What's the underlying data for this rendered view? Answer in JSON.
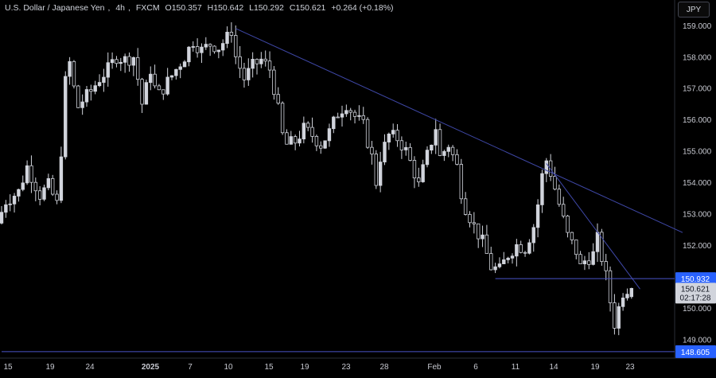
{
  "header": {
    "symbol": "U.S. Dollar / Japanese Yen",
    "interval": "4h",
    "source": "FXCM",
    "open_label": "O",
    "open": "150.357",
    "high_label": "H",
    "high": "150.642",
    "low_label": "L",
    "low": "150.292",
    "close_label": "C",
    "close": "150.621",
    "change": "+0.264 (+0.18%)"
  },
  "currency_button": "JPY",
  "colors": {
    "background": "#000000",
    "candle": "#d1d4dc",
    "trendline": "#3f48a8",
    "level_line": "#4a54c8",
    "level_badge": "#2962ff",
    "last_price_badge": "#d1d4dc",
    "axis_text": "#c7c9d1"
  },
  "chart_data": {
    "type": "candlestick",
    "yrange": [
      148.4,
      159.3
    ],
    "x_tick_labels": [
      "15",
      "19",
      "24",
      "2025",
      "7",
      "10",
      "15",
      "19",
      "23",
      "28",
      "Feb",
      "6",
      "11",
      "14",
      "19",
      "23"
    ],
    "y_tick_labels": [
      "159.000",
      "158.000",
      "157.000",
      "156.000",
      "155.000",
      "154.000",
      "153.000",
      "152.000",
      "151.000",
      "150.000",
      "149.000"
    ],
    "y_tick_values": [
      159,
      158,
      157,
      156,
      155,
      154,
      153,
      152,
      151,
      150,
      149
    ],
    "price_path": [
      [
        0,
        152.7
      ],
      [
        2,
        153.4
      ],
      [
        5,
        153.7
      ],
      [
        7,
        154.5
      ],
      [
        10,
        153.6
      ],
      [
        12,
        153.9
      ],
      [
        14,
        153.3
      ],
      [
        15,
        155.0
      ],
      [
        16,
        157.2
      ],
      [
        17,
        157.8
      ],
      [
        18,
        157.0
      ],
      [
        19,
        156.4
      ],
      [
        20,
        156.6
      ],
      [
        22,
        156.9
      ],
      [
        24,
        157.3
      ],
      [
        26,
        157.6
      ],
      [
        28,
        158.0
      ],
      [
        30,
        157.9
      ],
      [
        32,
        158.0
      ],
      [
        33,
        157.3
      ],
      [
        34,
        156.5
      ],
      [
        35,
        157.0
      ],
      [
        36,
        157.6
      ],
      [
        37,
        157.0
      ],
      [
        38,
        156.8
      ],
      [
        40,
        157.2
      ],
      [
        42,
        157.6
      ],
      [
        44,
        158.0
      ],
      [
        46,
        158.5
      ],
      [
        48,
        158.2
      ],
      [
        50,
        158.4
      ],
      [
        52,
        158.3
      ],
      [
        54,
        158.6
      ],
      [
        55,
        158.85
      ],
      [
        56,
        158.0
      ],
      [
        58,
        157.3
      ],
      [
        60,
        157.7
      ],
      [
        62,
        157.9
      ],
      [
        64,
        157.6
      ],
      [
        65,
        157.0
      ],
      [
        66,
        156.3
      ],
      [
        67,
        155.5
      ],
      [
        68,
        155.2
      ],
      [
        70,
        155.3
      ],
      [
        72,
        155.7
      ],
      [
        74,
        155.5
      ],
      [
        76,
        155.2
      ],
      [
        78,
        155.6
      ],
      [
        80,
        156.2
      ],
      [
        82,
        156.5
      ],
      [
        84,
        156.1
      ],
      [
        86,
        155.8
      ],
      [
        88,
        154.8
      ],
      [
        89,
        154.0
      ],
      [
        90,
        154.8
      ],
      [
        92,
        155.5
      ],
      [
        94,
        155.4
      ],
      [
        96,
        155.0
      ],
      [
        98,
        154.3
      ],
      [
        99,
        153.9
      ],
      [
        100,
        154.4
      ],
      [
        102,
        155.3
      ],
      [
        103,
        155.75
      ],
      [
        104,
        154.8
      ],
      [
        106,
        155.2
      ],
      [
        108,
        154.5
      ],
      [
        109,
        153.7
      ],
      [
        110,
        153.2
      ],
      [
        112,
        152.6
      ],
      [
        114,
        152.1
      ],
      [
        116,
        151.3
      ],
      [
        118,
        151.2
      ],
      [
        120,
        151.7
      ],
      [
        122,
        152.0
      ],
      [
        124,
        151.9
      ],
      [
        126,
        152.6
      ],
      [
        127,
        153.3
      ],
      [
        128,
        154.2
      ],
      [
        129,
        154.7
      ],
      [
        130,
        154.3
      ],
      [
        132,
        153.3
      ],
      [
        134,
        152.3
      ],
      [
        136,
        151.8
      ],
      [
        137,
        151.3
      ],
      [
        138,
        151.5
      ],
      [
        140,
        151.7
      ],
      [
        141,
        152.2
      ],
      [
        142,
        151.6
      ],
      [
        143,
        151.0
      ],
      [
        144,
        150.2
      ],
      [
        145,
        149.5
      ],
      [
        146,
        150.0
      ],
      [
        147,
        150.5
      ],
      [
        148,
        150.62
      ]
    ],
    "last_candle": {
      "open": 150.357,
      "high": 150.642,
      "low": 150.292,
      "close": 150.621
    },
    "trendlines": [
      {
        "x0": 55,
        "y0": 158.9,
        "x1": 160,
        "y1": 152.4
      },
      {
        "x0": 128,
        "y0": 154.6,
        "x1": 150,
        "y1": 150.6
      }
    ],
    "horizontal_levels": [
      {
        "value": 150.932,
        "label": "150.932",
        "x_start": 116
      },
      {
        "value": 148.605,
        "label": "148.605",
        "x_start": 0
      }
    ],
    "last_price": {
      "value": 150.621,
      "label": "150.621",
      "countdown": "02:17:28"
    }
  }
}
